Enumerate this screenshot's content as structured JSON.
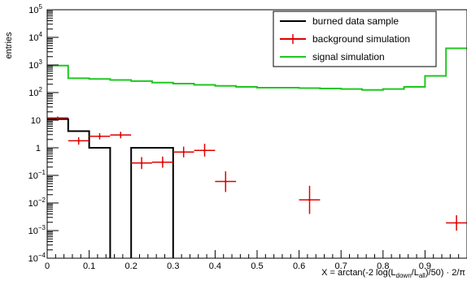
{
  "chart_data": {
    "type": "histogram",
    "title": "",
    "xlabel": "X = arctan(-2 log(L_down/L_all)/50) · 2/π",
    "xlabel_parts": {
      "prefix": "X = arctan(-2 log(L",
      "sub1": "down",
      "middle": "/L",
      "sub2": "all",
      "suffix": ")/50) · 2/π"
    },
    "ylabel": "entries",
    "xlim": [
      0,
      1
    ],
    "ylim": [
      0.0001,
      100000
    ],
    "y_scale": "log",
    "x_ticks": [
      {
        "value": 0,
        "label": "0"
      },
      {
        "value": 0.1,
        "label": "0.1"
      },
      {
        "value": 0.2,
        "label": "0.2"
      },
      {
        "value": 0.3,
        "label": "0.3"
      },
      {
        "value": 0.4,
        "label": "0.4"
      },
      {
        "value": 0.5,
        "label": "0.5"
      },
      {
        "value": 0.6,
        "label": "0.6"
      },
      {
        "value": 0.7,
        "label": "0.7"
      },
      {
        "value": 0.8,
        "label": "0.8"
      },
      {
        "value": 0.9,
        "label": "0.9"
      }
    ],
    "y_ticks": [
      {
        "exp": -4,
        "label": "10",
        "sup": "−4"
      },
      {
        "exp": -3,
        "label": "10",
        "sup": "−3"
      },
      {
        "exp": -2,
        "label": "10",
        "sup": "−2"
      },
      {
        "exp": -1,
        "label": "10",
        "sup": "−1"
      },
      {
        "exp": 0,
        "label": "1",
        "sup": ""
      },
      {
        "exp": 1,
        "label": "10",
        "sup": ""
      },
      {
        "exp": 2,
        "label": "10",
        "sup": "2"
      },
      {
        "exp": 3,
        "label": "10",
        "sup": "3"
      },
      {
        "exp": 4,
        "label": "10",
        "sup": "4"
      },
      {
        "exp": 5,
        "label": "10",
        "sup": "5"
      }
    ],
    "legend_position": "top-right",
    "series": [
      {
        "name": "burned data sample",
        "color": "#000000",
        "style": "step",
        "bins": [
          {
            "x0": 0.0,
            "x1": 0.05,
            "y": 11
          },
          {
            "x0": 0.05,
            "x1": 0.1,
            "y": 4
          },
          {
            "x0": 0.1,
            "x1": 0.15,
            "y": 1
          },
          {
            "x0": 0.15,
            "x1": 0.2,
            "y": 0
          },
          {
            "x0": 0.2,
            "x1": 0.3,
            "y": 1
          },
          {
            "x0": 0.3,
            "x1": 1.0,
            "y": 0
          }
        ]
      },
      {
        "name": "background simulation",
        "color": "#e00000",
        "style": "errorbar",
        "points": [
          {
            "x": 0.025,
            "xerr": 0.025,
            "y": 12,
            "ylo": 10.5,
            "yhi": 13.5
          },
          {
            "x": 0.075,
            "xerr": 0.025,
            "y": 1.8,
            "ylo": 1.3,
            "yhi": 2.4
          },
          {
            "x": 0.125,
            "xerr": 0.025,
            "y": 2.6,
            "ylo": 2.0,
            "yhi": 3.4
          },
          {
            "x": 0.175,
            "xerr": 0.025,
            "y": 2.9,
            "ylo": 2.2,
            "yhi": 3.8
          },
          {
            "x": 0.225,
            "xerr": 0.025,
            "y": 0.28,
            "ylo": 0.17,
            "yhi": 0.46
          },
          {
            "x": 0.275,
            "xerr": 0.025,
            "y": 0.3,
            "ylo": 0.19,
            "yhi": 0.48
          },
          {
            "x": 0.325,
            "xerr": 0.025,
            "y": 0.7,
            "ylo": 0.45,
            "yhi": 1.1
          },
          {
            "x": 0.375,
            "xerr": 0.025,
            "y": 0.8,
            "ylo": 0.48,
            "yhi": 1.4
          },
          {
            "x": 0.425,
            "xerr": 0.025,
            "y": 0.06,
            "ylo": 0.025,
            "yhi": 0.14
          },
          {
            "x": 0.625,
            "xerr": 0.025,
            "y": 0.013,
            "ylo": 0.004,
            "yhi": 0.042
          },
          {
            "x": 0.975,
            "xerr": 0.025,
            "y": 0.0019,
            "ylo": 0.001,
            "yhi": 0.0036
          }
        ]
      },
      {
        "name": "signal simulation",
        "color": "#1ec81e",
        "style": "step",
        "bins": [
          {
            "x0": 0.0,
            "x1": 0.05,
            "y": 950
          },
          {
            "x0": 0.05,
            "x1": 0.1,
            "y": 330
          },
          {
            "x0": 0.1,
            "x1": 0.15,
            "y": 310
          },
          {
            "x0": 0.15,
            "x1": 0.2,
            "y": 285
          },
          {
            "x0": 0.2,
            "x1": 0.25,
            "y": 260
          },
          {
            "x0": 0.25,
            "x1": 0.3,
            "y": 230
          },
          {
            "x0": 0.3,
            "x1": 0.35,
            "y": 210
          },
          {
            "x0": 0.35,
            "x1": 0.4,
            "y": 190
          },
          {
            "x0": 0.4,
            "x1": 0.45,
            "y": 175
          },
          {
            "x0": 0.45,
            "x1": 0.5,
            "y": 160
          },
          {
            "x0": 0.5,
            "x1": 0.55,
            "y": 150
          },
          {
            "x0": 0.55,
            "x1": 0.6,
            "y": 150
          },
          {
            "x0": 0.6,
            "x1": 0.65,
            "y": 145
          },
          {
            "x0": 0.65,
            "x1": 0.7,
            "y": 140
          },
          {
            "x0": 0.7,
            "x1": 0.75,
            "y": 135
          },
          {
            "x0": 0.75,
            "x1": 0.8,
            "y": 125
          },
          {
            "x0": 0.8,
            "x1": 0.85,
            "y": 135
          },
          {
            "x0": 0.85,
            "x1": 0.9,
            "y": 160
          },
          {
            "x0": 0.9,
            "x1": 0.95,
            "y": 400
          },
          {
            "x0": 0.95,
            "x1": 1.0,
            "y": 4000
          }
        ]
      }
    ]
  }
}
